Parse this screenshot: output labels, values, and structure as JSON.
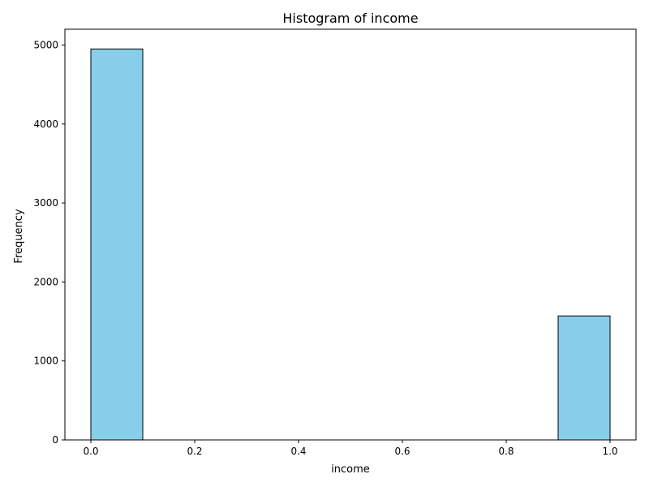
{
  "chart_data": {
    "type": "bar",
    "title": "Histogram of income",
    "xlabel": "income",
    "ylabel": "Frequency",
    "bins": [
      {
        "x0": 0.0,
        "x1": 0.1,
        "count": 4950
      },
      {
        "x0": 0.1,
        "x1": 0.2,
        "count": 0
      },
      {
        "x0": 0.2,
        "x1": 0.3,
        "count": 0
      },
      {
        "x0": 0.3,
        "x1": 0.4,
        "count": 0
      },
      {
        "x0": 0.4,
        "x1": 0.5,
        "count": 0
      },
      {
        "x0": 0.5,
        "x1": 0.6,
        "count": 0
      },
      {
        "x0": 0.6,
        "x1": 0.7,
        "count": 0
      },
      {
        "x0": 0.7,
        "x1": 0.8,
        "count": 0
      },
      {
        "x0": 0.8,
        "x1": 0.9,
        "count": 0
      },
      {
        "x0": 0.9,
        "x1": 1.0,
        "count": 1570
      }
    ],
    "xlim": [
      -0.05,
      1.05
    ],
    "ylim": [
      0,
      5200
    ],
    "xticks": [
      0.0,
      0.2,
      0.4,
      0.6,
      0.8,
      1.0
    ],
    "xtick_labels": [
      "0.0",
      "0.2",
      "0.4",
      "0.6",
      "0.8",
      "1.0"
    ],
    "yticks": [
      0,
      1000,
      2000,
      3000,
      4000,
      5000
    ],
    "ytick_labels": [
      "0",
      "1000",
      "2000",
      "3000",
      "4000",
      "5000"
    ],
    "grid": false,
    "bar_color": "#87ceeb",
    "edge_color": "#000000"
  }
}
